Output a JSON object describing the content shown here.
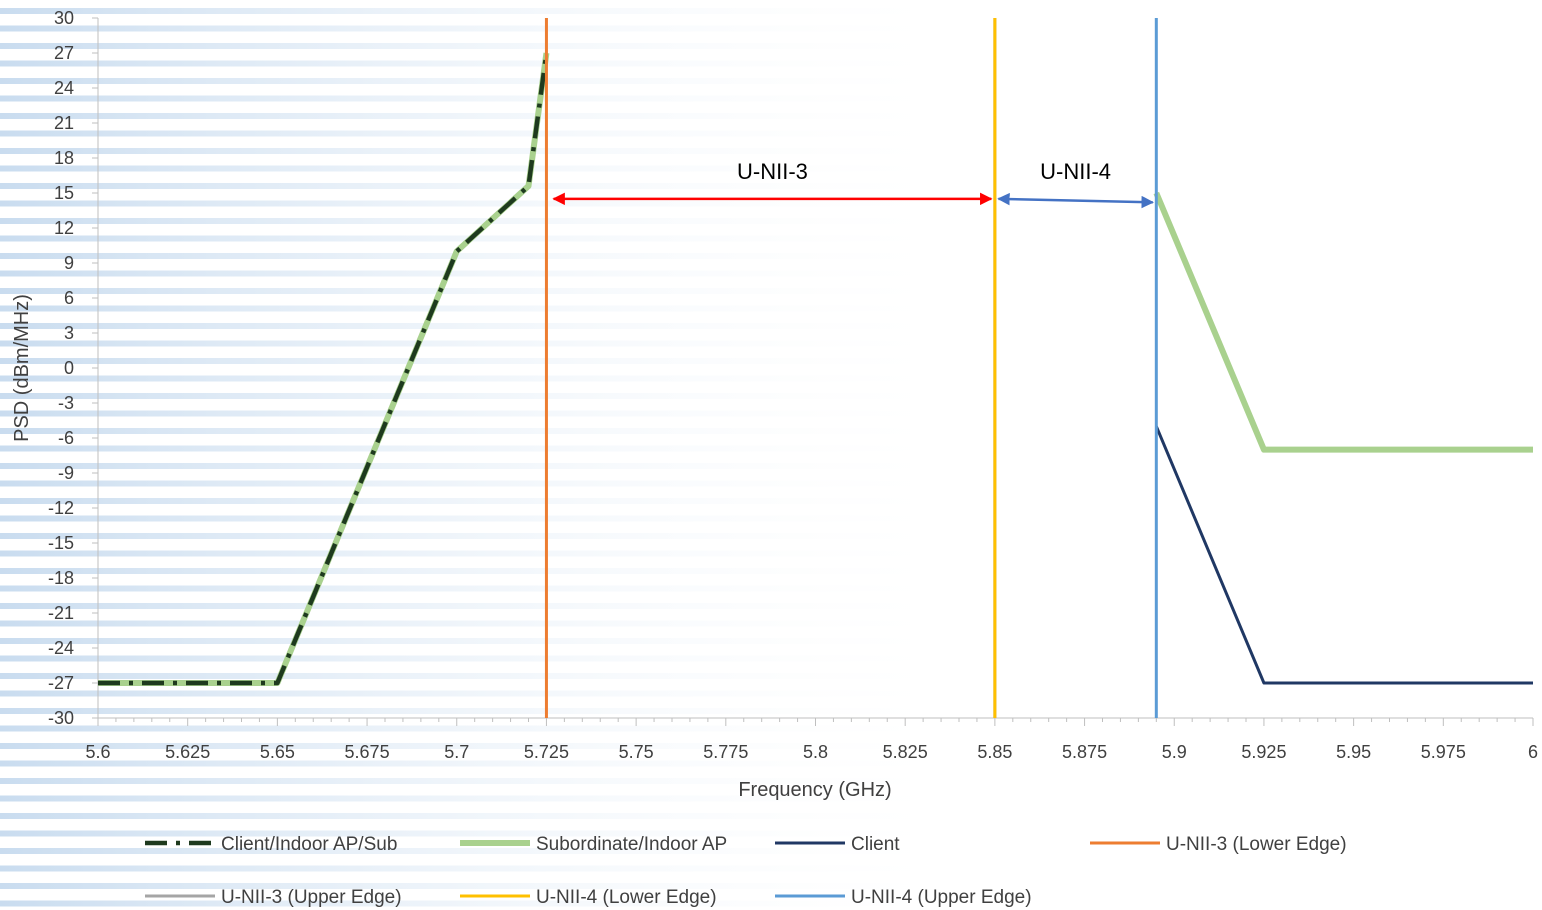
{
  "chart_data": {
    "type": "line",
    "title": "",
    "xlabel": "Frequency (GHz)",
    "ylabel": "PSD (dBm/MHz)",
    "xlim": [
      5.6,
      6.0
    ],
    "ylim": [
      -30,
      30
    ],
    "x_ticks": [
      "5.6",
      "5.625",
      "5.65",
      "5.675",
      "5.7",
      "5.725",
      "5.75",
      "5.775",
      "5.8",
      "5.825",
      "5.85",
      "5.875",
      "5.9",
      "5.925",
      "5.95",
      "5.975",
      "6"
    ],
    "y_ticks": [
      "30",
      "27",
      "24",
      "21",
      "18",
      "15",
      "12",
      "9",
      "6",
      "3",
      "0",
      "-3",
      "-6",
      "-9",
      "-12",
      "-15",
      "-18",
      "-21",
      "-24",
      "-27",
      "-30"
    ],
    "grid": false,
    "legend_position": "bottom",
    "series": [
      {
        "name": "Client/Indoor AP/Sub",
        "color": "#1e3a1e",
        "dash": "dash-dot",
        "points": [
          [
            5.6,
            -27
          ],
          [
            5.65,
            -27
          ],
          [
            5.7,
            10
          ],
          [
            5.72,
            15.6
          ],
          [
            5.725,
            27
          ]
        ]
      },
      {
        "name": "Subordinate/Indoor AP",
        "color": "#a9d18e",
        "dash": "solid",
        "points": [
          [
            5.6,
            -27
          ],
          [
            5.65,
            -27
          ],
          [
            5.7,
            10
          ],
          [
            5.72,
            15.6
          ],
          [
            5.725,
            27
          ],
          null,
          [
            5.895,
            15
          ],
          [
            5.925,
            -7
          ],
          [
            6.0,
            -7
          ]
        ]
      },
      {
        "name": "Client",
        "color": "#203864",
        "dash": "solid",
        "points": [
          [
            5.895,
            -5
          ],
          [
            5.925,
            -27
          ],
          [
            6.0,
            -27
          ]
        ]
      },
      {
        "name": "U-NII-3 (Lower Edge)",
        "color": "#ed7d31",
        "dash": "solid",
        "points": [
          [
            5.725,
            -30
          ],
          [
            5.725,
            30
          ]
        ]
      },
      {
        "name": "U-NII-3 (Upper Edge)",
        "color": "#a5a5a5",
        "dash": "solid",
        "points": [
          [
            5.85,
            -30
          ],
          [
            5.85,
            30
          ]
        ]
      },
      {
        "name": "U-NII-4 (Lower Edge)",
        "color": "#ffc000",
        "dash": "solid",
        "points": [
          [
            5.85,
            -30
          ],
          [
            5.85,
            30
          ]
        ]
      },
      {
        "name": "U-NII-4 (Upper Edge)",
        "color": "#5b9bd5",
        "dash": "solid",
        "points": [
          [
            5.895,
            -30
          ],
          [
            5.895,
            30
          ]
        ]
      }
    ],
    "annotations": [
      {
        "label": "U-NII-3",
        "color": "#ff0000",
        "from": [
          5.727,
          14.5
        ],
        "to": [
          5.849,
          14.5
        ]
      },
      {
        "label": "U-NII-4",
        "color": "#4472c4",
        "from": [
          5.851,
          14.5
        ],
        "to": [
          5.894,
          14.2
        ]
      }
    ]
  }
}
